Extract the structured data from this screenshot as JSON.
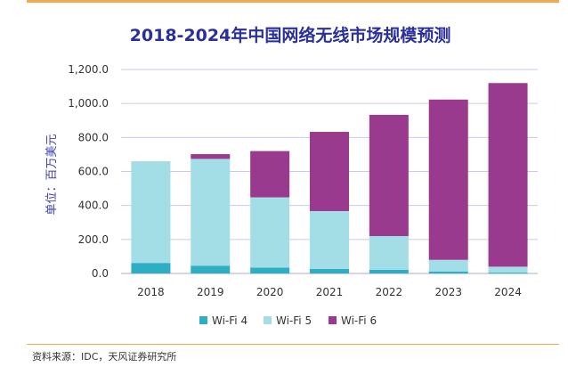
{
  "source_note": "资料来源：IDC，天风证券研究所",
  "colors": {
    "title": "#2b2f9a",
    "grid": "#c7c9ec",
    "axis": "#a9abd6",
    "Wi-Fi 4": "#2eaec2",
    "Wi-Fi 5": "#a3dde5",
    "Wi-Fi 6": "#9a3a8e"
  },
  "chart_data": {
    "type": "bar",
    "stacked": true,
    "title": "2018-2024年中国网络无线市场规模预测",
    "xlabel": "",
    "ylabel": "单位：百万美元",
    "categories": [
      "2018",
      "2019",
      "2020",
      "2021",
      "2022",
      "2023",
      "2024"
    ],
    "ylim": [
      0,
      1200
    ],
    "yticks": [
      "0.0",
      "200.0",
      "400.0",
      "600.0",
      "800.0",
      "1,000.0",
      "1,200.0"
    ],
    "grid": true,
    "legend_position": "bottom",
    "series": [
      {
        "name": "Wi-Fi 4",
        "values": [
          62,
          46,
          35,
          27,
          22,
          12,
          5
        ]
      },
      {
        "name": "Wi-Fi 5",
        "values": [
          598,
          628,
          413,
          340,
          198,
          68,
          35
        ]
      },
      {
        "name": "Wi-Fi 6",
        "values": [
          0,
          28,
          272,
          466,
          713,
          943,
          1080
        ]
      }
    ]
  }
}
